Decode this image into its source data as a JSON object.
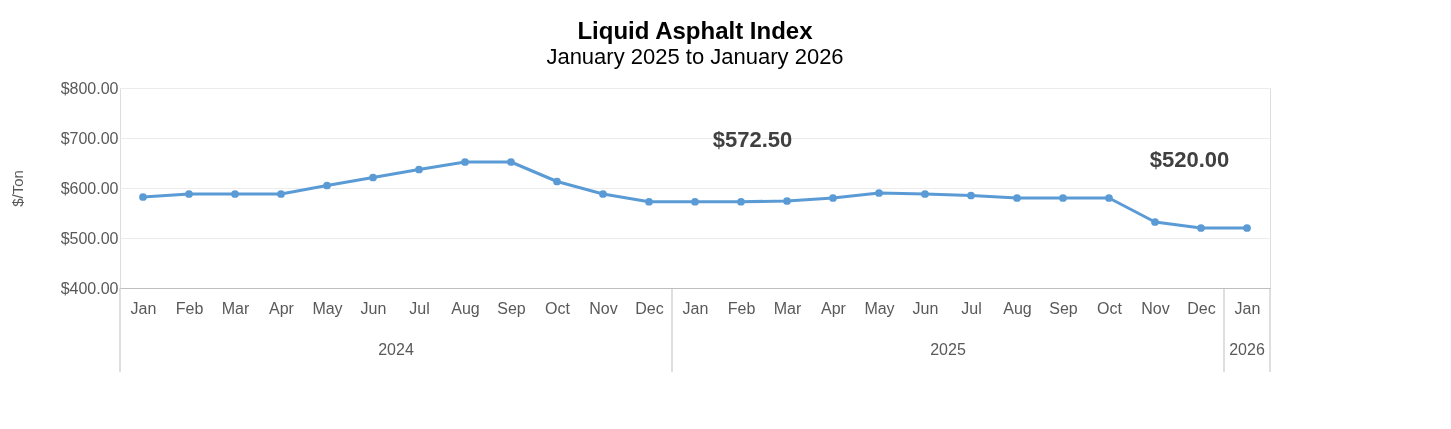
{
  "chart_data": {
    "type": "line",
    "title": "Liquid Asphalt Index",
    "subtitle": "January 2025 to January 2026",
    "ylabel": "$/Ton",
    "categories": [
      "Jan",
      "Feb",
      "Mar",
      "Apr",
      "May",
      "Jun",
      "Jul",
      "Aug",
      "Sep",
      "Oct",
      "Nov",
      "Dec",
      "Jan",
      "Feb",
      "Mar",
      "Apr",
      "May",
      "Jun",
      "Jul",
      "Aug",
      "Sep",
      "Oct",
      "Nov",
      "Dec",
      "Jan"
    ],
    "series": [
      {
        "color": "#5b9bd5",
        "values": [
          582,
          588,
          588,
          588,
          605,
          621,
          637,
          652,
          652,
          613,
          588,
          572.5,
          572.5,
          572.5,
          574,
          580,
          590,
          588,
          585,
          580,
          580,
          580,
          532,
          520,
          520
        ]
      }
    ],
    "ylim": [
      400,
      800
    ],
    "yticks": [
      {
        "value": 400,
        "label": "$400.00"
      },
      {
        "value": 500,
        "label": "$500.00"
      },
      {
        "value": 600,
        "label": "$600.00"
      },
      {
        "value": 700,
        "label": "$700.00"
      },
      {
        "value": 800,
        "label": "$800.00"
      }
    ],
    "grid": "y",
    "marker": "circle",
    "line_style": "solid",
    "annotations": [
      "2024",
      "2025",
      "2026",
      "$572.50",
      "$520.00"
    ]
  }
}
